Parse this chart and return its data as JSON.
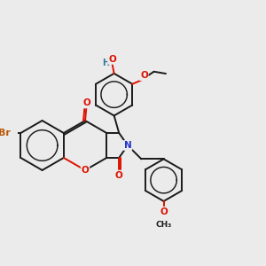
{
  "bg": "#ebebeb",
  "bond_color": "#1a1a1a",
  "bond_lw": 1.4,
  "atom_colors": {
    "C": "#1a1a1a",
    "O": "#dd1100",
    "N": "#2233cc",
    "Br": "#bb5500",
    "H": "#337799"
  },
  "font_size": 7.5,
  "xlim": [
    -1.5,
    8.5
  ],
  "ylim": [
    -3.5,
    5.5
  ]
}
